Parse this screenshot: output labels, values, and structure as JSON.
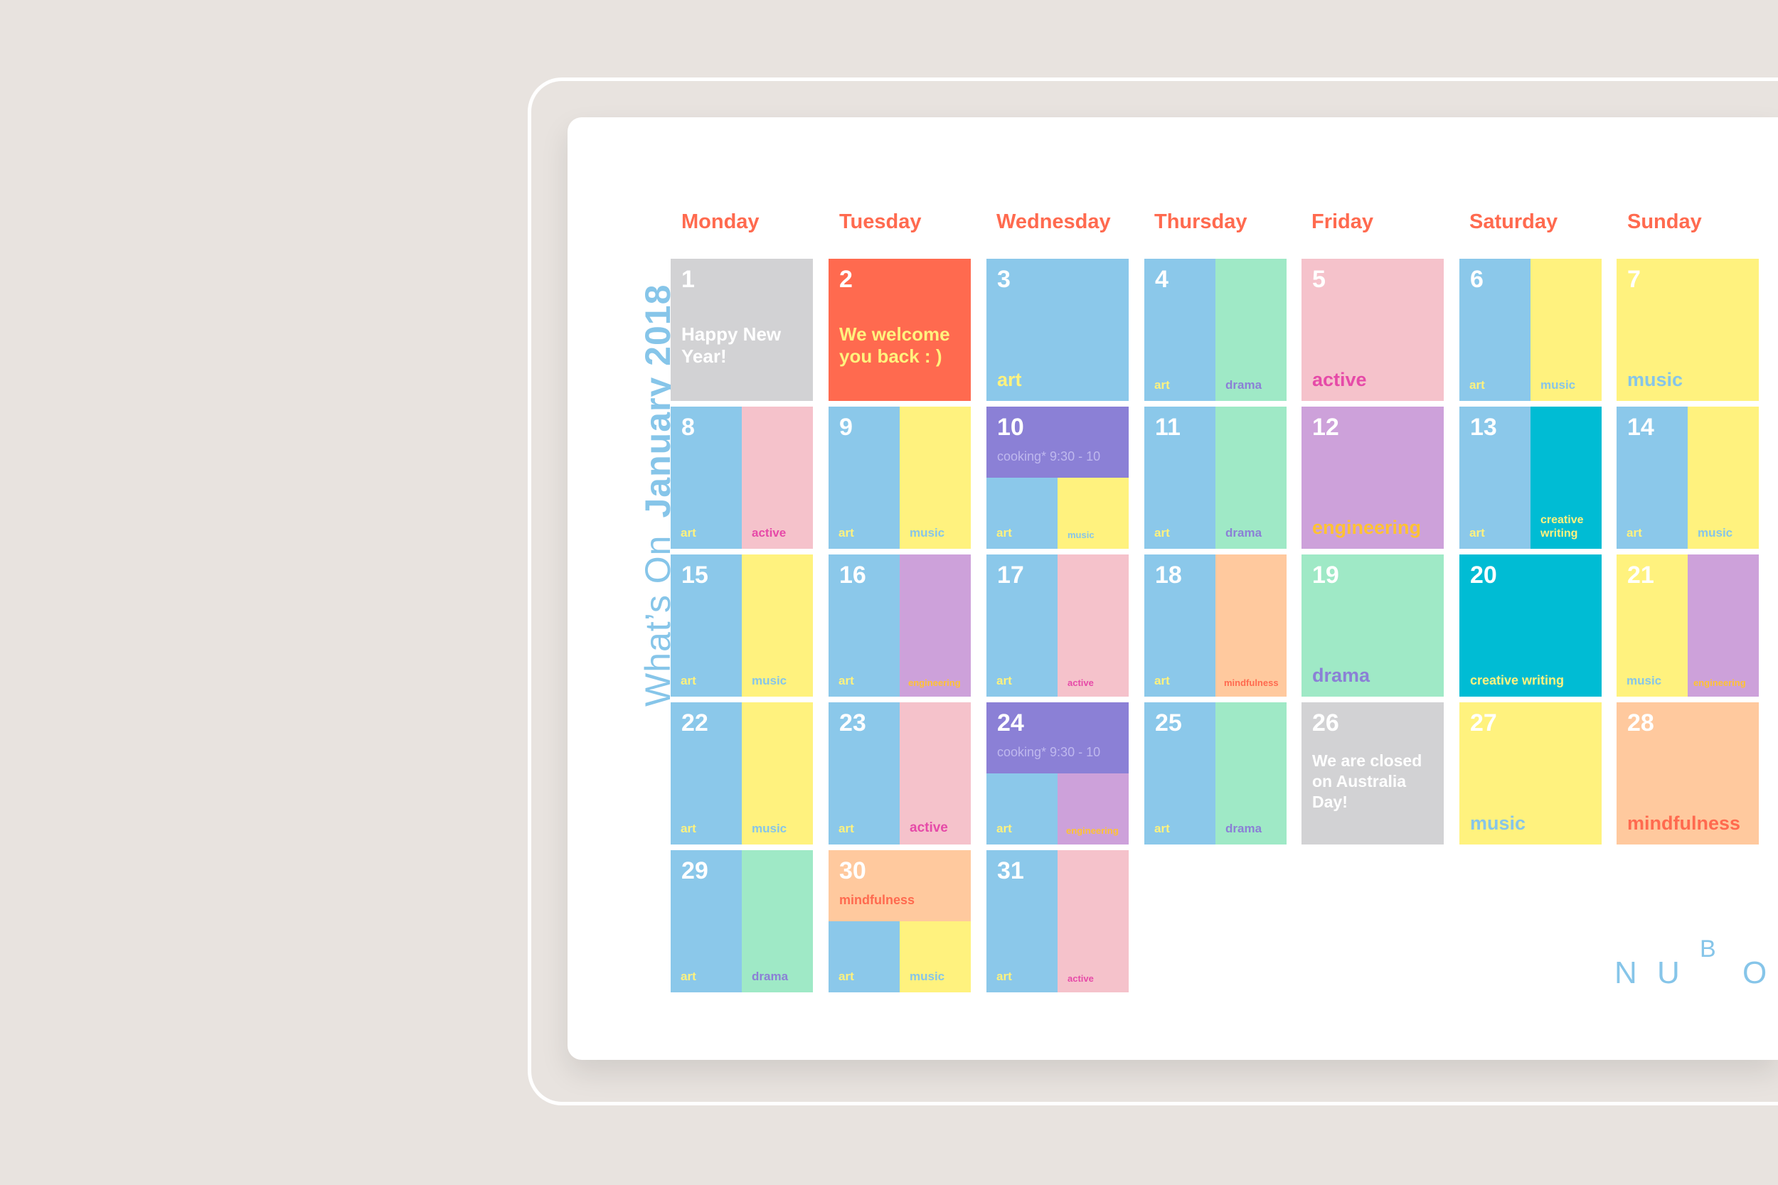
{
  "title": {
    "prefix": "What’s On",
    "month": "January 2018"
  },
  "days": [
    "Monday",
    "Tuesday",
    "Wednesday",
    "Thursday",
    "Friday",
    "Saturday",
    "Sunday"
  ],
  "brand": [
    "N",
    "U",
    "B",
    "O"
  ],
  "cells": {
    "c1": {
      "num": "1",
      "message": "Happy New Year!"
    },
    "c2": {
      "num": "2",
      "message": "We welcome you back : )"
    },
    "c3": {
      "num": "3",
      "label": "art"
    },
    "c4": {
      "num": "4",
      "left": "art",
      "right": "drama"
    },
    "c5": {
      "num": "5",
      "label": "active"
    },
    "c6": {
      "num": "6",
      "left": "art",
      "right": "music"
    },
    "c7": {
      "num": "7",
      "label": "music"
    },
    "c8": {
      "num": "8",
      "left": "art",
      "right": "active"
    },
    "c9": {
      "num": "9",
      "left": "art",
      "right": "music"
    },
    "c10": {
      "num": "10",
      "sub": "cooking* 9:30 - 10",
      "left": "art",
      "right": "music"
    },
    "c11": {
      "num": "11",
      "left": "art",
      "right": "drama"
    },
    "c12": {
      "num": "12",
      "label": "engineering"
    },
    "c13": {
      "num": "13",
      "left": "art",
      "right": "creative writing"
    },
    "c14": {
      "num": "14",
      "left": "art",
      "right": "music"
    },
    "c15": {
      "num": "15",
      "left": "art",
      "right": "music"
    },
    "c16": {
      "num": "16",
      "left": "art",
      "right": "engineering"
    },
    "c17": {
      "num": "17",
      "left": "art",
      "right": "active"
    },
    "c18": {
      "num": "18",
      "left": "art",
      "right": "mindfulness"
    },
    "c19": {
      "num": "19",
      "label": "drama"
    },
    "c20": {
      "num": "20",
      "label": "creative writing"
    },
    "c21": {
      "num": "21",
      "left": "music",
      "right": "engineering"
    },
    "c22": {
      "num": "22",
      "left": "art",
      "right": "music"
    },
    "c23": {
      "num": "23",
      "left": "art",
      "right": "active"
    },
    "c24": {
      "num": "24",
      "sub": "cooking* 9:30 - 10",
      "left": "art",
      "right": "engineering"
    },
    "c25": {
      "num": "25",
      "left": "art",
      "right": "drama"
    },
    "c26": {
      "num": "26",
      "message": "We are closed on Australia Day!"
    },
    "c27": {
      "num": "27",
      "label": "music"
    },
    "c28": {
      "num": "28",
      "label": "mindfulness"
    },
    "c29": {
      "num": "29",
      "left": "art",
      "right": "drama"
    },
    "c30": {
      "num": "30",
      "sub": "mindfulness",
      "left": "art",
      "right": "music"
    },
    "c31": {
      "num": "31",
      "left": "art",
      "right": "active"
    }
  },
  "colors": {
    "art": "#8bc8ea",
    "music": "#fff27e",
    "drama": "#9fe9c6",
    "active": "#f5c2cb",
    "engineering": "#cda1da",
    "creative_writing": "#00bcd4",
    "mindfulness": "#ffc99e",
    "cooking": "#8b80d6",
    "holiday": "#d2d2d4",
    "welcome": "#ff6a4f",
    "heading": "#ff6a4f"
  }
}
